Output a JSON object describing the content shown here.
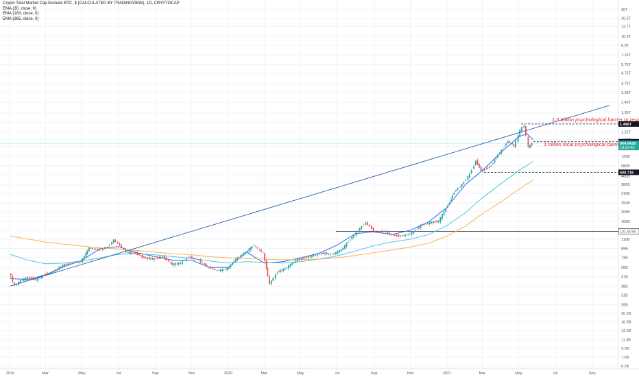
{
  "legend": {
    "title": "Crypto Total Market Cap Exclude BTC, $ (CALCULATED BY TRADINGVIEW), 1D, CRYPTOCAP",
    "ema_lines": [
      "EMA (30, close, 0)",
      "EMA (183, close, 0)",
      "EMA (365, close, 0)"
    ]
  },
  "colors": {
    "background": "#ffffff",
    "grid": "#f0f3fa",
    "up": "#26a69a",
    "down": "#ef5350",
    "ema30": "#2962ff",
    "ema183": "#4dc4e3",
    "ema365": "#f9b44b",
    "trendline": "#2a5caa",
    "annotation": "#e3242b",
    "tag_dark": "#131722",
    "tag_current": "#26a69a"
  },
  "chart_data": {
    "type": "candlestick",
    "title": "Crypto Total Market Cap Exclude BTC, $ (CALCULATED BY TRADINGVIEW), 1D, CRYPTOCAP",
    "scale": "log",
    "x_ticks": [
      "2019",
      "Mar",
      "May",
      "Jul",
      "Sep",
      "Nov",
      "2020",
      "Mar",
      "May",
      "Jul",
      "Sep",
      "Nov",
      "2021",
      "Mar",
      "May",
      "Jul",
      "Sep"
    ],
    "y_ticks": [
      "20T",
      "16.5T",
      "13.7T",
      "10.9T",
      "8.9T",
      "7.15T",
      "5.75T",
      "4.75T",
      "3.75T",
      "3.05T",
      "2.45T",
      "1.95T",
      "1.55T",
      "1.25T",
      "1.05T",
      "900B",
      "720B",
      "580B",
      "460B",
      "380B",
      "310B",
      "250B",
      "205B",
      "165B",
      "130B",
      "110B",
      "89B",
      "73B",
      "58B",
      "47B",
      "38B",
      "31B",
      "25B",
      "20.5B",
      "16.9B",
      "13.9B",
      "11.3B",
      "9.3B",
      "7.6B",
      "6.2B"
    ],
    "price_tags": [
      {
        "label": "1.496T",
        "value": 1496,
        "style": "dark"
      },
      {
        "label": "1.001T",
        "value": 1001,
        "style": "dark"
      },
      {
        "label": "964.643B",
        "sublabel": "18:23:45",
        "value": 964.643,
        "style": "current"
      },
      {
        "label": "500.718",
        "value": 500.718,
        "style": "dark"
      },
      {
        "label": "131.607B",
        "value": 131.607,
        "style": "plain"
      }
    ],
    "annotations": [
      {
        "text": "1.5 trillion psychological barrier or resistan",
        "level": 1496
      },
      {
        "text": "1 trillion local psychological barrier or",
        "level": 1001
      }
    ],
    "horizontal_levels": [
      1496,
      1001,
      500.718,
      131.607
    ],
    "trendline": {
      "start": {
        "date": "2019-01-01",
        "value": 38
      },
      "end": {
        "date": "2021-09-30",
        "value": 2280
      }
    },
    "series": [
      {
        "name": "EMA (30, close, 0)",
        "points": [
          [
            "2019-01-01",
            45
          ],
          [
            "2019-02-01",
            44
          ],
          [
            "2019-03-01",
            49
          ],
          [
            "2019-04-01",
            59
          ],
          [
            "2019-05-01",
            68
          ],
          [
            "2019-06-01",
            89
          ],
          [
            "2019-07-01",
            93
          ],
          [
            "2019-08-01",
            81
          ],
          [
            "2019-09-01",
            74
          ],
          [
            "2019-10-01",
            68
          ],
          [
            "2019-11-01",
            68
          ],
          [
            "2019-12-01",
            58
          ],
          [
            "2020-01-01",
            58
          ],
          [
            "2020-02-01",
            82
          ],
          [
            "2020-03-01",
            64
          ],
          [
            "2020-04-01",
            66
          ],
          [
            "2020-05-01",
            72
          ],
          [
            "2020-06-01",
            80
          ],
          [
            "2020-07-01",
            96
          ],
          [
            "2020-08-01",
            125
          ],
          [
            "2020-09-01",
            130
          ],
          [
            "2020-10-01",
            122
          ],
          [
            "2020-11-01",
            135
          ],
          [
            "2020-12-01",
            162
          ],
          [
            "2021-01-01",
            225
          ],
          [
            "2021-02-01",
            380
          ],
          [
            "2021-03-01",
            520
          ],
          [
            "2021-04-01",
            780
          ],
          [
            "2021-05-01",
            1120
          ],
          [
            "2021-05-15",
            1200
          ],
          [
            "2021-05-25",
            1050
          ]
        ]
      },
      {
        "name": "EMA (183, close, 0)",
        "points": [
          [
            "2019-01-01",
            78
          ],
          [
            "2019-02-01",
            68
          ],
          [
            "2019-03-01",
            63
          ],
          [
            "2019-04-01",
            64
          ],
          [
            "2019-05-01",
            67
          ],
          [
            "2019-06-01",
            72
          ],
          [
            "2019-07-01",
            78
          ],
          [
            "2019-08-01",
            79
          ],
          [
            "2019-09-01",
            77
          ],
          [
            "2019-10-01",
            74
          ],
          [
            "2019-11-01",
            71
          ],
          [
            "2019-12-01",
            67
          ],
          [
            "2020-01-01",
            64
          ],
          [
            "2020-02-01",
            66
          ],
          [
            "2020-03-01",
            65
          ],
          [
            "2020-04-01",
            64
          ],
          [
            "2020-05-01",
            66
          ],
          [
            "2020-06-01",
            70
          ],
          [
            "2020-07-01",
            75
          ],
          [
            "2020-08-01",
            84
          ],
          [
            "2020-09-01",
            95
          ],
          [
            "2020-10-01",
            103
          ],
          [
            "2020-11-01",
            110
          ],
          [
            "2020-12-01",
            122
          ],
          [
            "2021-01-01",
            150
          ],
          [
            "2021-02-01",
            200
          ],
          [
            "2021-03-01",
            280
          ],
          [
            "2021-04-01",
            385
          ],
          [
            "2021-05-01",
            520
          ],
          [
            "2021-05-25",
            640
          ]
        ]
      },
      {
        "name": "EMA (365, close, 0)",
        "points": [
          [
            "2019-01-01",
            118
          ],
          [
            "2019-02-01",
            110
          ],
          [
            "2019-03-01",
            103
          ],
          [
            "2019-04-01",
            98
          ],
          [
            "2019-05-01",
            94
          ],
          [
            "2019-06-01",
            90
          ],
          [
            "2019-07-01",
            88
          ],
          [
            "2019-08-01",
            85
          ],
          [
            "2019-09-01",
            82
          ],
          [
            "2019-10-01",
            79
          ],
          [
            "2019-11-01",
            77
          ],
          [
            "2019-12-01",
            74
          ],
          [
            "2020-01-01",
            72
          ],
          [
            "2020-02-01",
            71
          ],
          [
            "2020-03-01",
            70
          ],
          [
            "2020-04-01",
            69
          ],
          [
            "2020-05-01",
            69
          ],
          [
            "2020-06-01",
            70
          ],
          [
            "2020-07-01",
            72
          ],
          [
            "2020-08-01",
            76
          ],
          [
            "2020-09-01",
            81
          ],
          [
            "2020-10-01",
            86
          ],
          [
            "2020-11-01",
            92
          ],
          [
            "2020-12-01",
            100
          ],
          [
            "2021-01-01",
            118
          ],
          [
            "2021-02-01",
            148
          ],
          [
            "2021-03-01",
            195
          ],
          [
            "2021-04-01",
            255
          ],
          [
            "2021-05-01",
            340
          ],
          [
            "2021-05-25",
            420
          ]
        ]
      },
      {
        "name": "",
        "kind": "price",
        "points": [
          [
            "2019-01-01",
            52
          ],
          [
            "2019-01-10",
            38
          ],
          [
            "2019-01-20",
            43
          ],
          [
            "2019-02-01",
            46
          ],
          [
            "2019-02-15",
            44
          ],
          [
            "2019-03-01",
            49
          ],
          [
            "2019-03-15",
            52
          ],
          [
            "2019-04-01",
            61
          ],
          [
            "2019-04-15",
            64
          ],
          [
            "2019-05-01",
            66
          ],
          [
            "2019-05-15",
            90
          ],
          [
            "2019-06-01",
            86
          ],
          [
            "2019-06-15",
            92
          ],
          [
            "2019-06-25",
            108
          ],
          [
            "2019-07-05",
            96
          ],
          [
            "2019-07-15",
            82
          ],
          [
            "2019-08-01",
            80
          ],
          [
            "2019-08-15",
            72
          ],
          [
            "2019-09-01",
            70
          ],
          [
            "2019-09-15",
            74
          ],
          [
            "2019-10-01",
            62
          ],
          [
            "2019-10-15",
            64
          ],
          [
            "2019-10-28",
            74
          ],
          [
            "2019-11-15",
            68
          ],
          [
            "2019-12-01",
            58
          ],
          [
            "2019-12-15",
            54
          ],
          [
            "2020-01-01",
            56
          ],
          [
            "2020-01-15",
            70
          ],
          [
            "2020-02-01",
            82
          ],
          [
            "2020-02-15",
            96
          ],
          [
            "2020-03-01",
            80
          ],
          [
            "2020-03-12",
            40
          ],
          [
            "2020-03-25",
            52
          ],
          [
            "2020-04-10",
            58
          ],
          [
            "2020-04-25",
            68
          ],
          [
            "2020-05-10",
            72
          ],
          [
            "2020-05-25",
            76
          ],
          [
            "2020-06-10",
            80
          ],
          [
            "2020-06-25",
            78
          ],
          [
            "2020-07-10",
            86
          ],
          [
            "2020-07-25",
            110
          ],
          [
            "2020-08-10",
            140
          ],
          [
            "2020-08-20",
            160
          ],
          [
            "2020-09-05",
            128
          ],
          [
            "2020-09-20",
            132
          ],
          [
            "2020-10-05",
            120
          ],
          [
            "2020-10-20",
            118
          ],
          [
            "2020-11-05",
            126
          ],
          [
            "2020-11-20",
            150
          ],
          [
            "2020-12-05",
            160
          ],
          [
            "2020-12-20",
            165
          ],
          [
            "2021-01-01",
            220
          ],
          [
            "2021-01-15",
            320
          ],
          [
            "2021-01-28",
            380
          ],
          [
            "2021-02-10",
            480
          ],
          [
            "2021-02-20",
            650
          ],
          [
            "2021-03-01",
            520
          ],
          [
            "2021-03-15",
            560
          ],
          [
            "2021-04-01",
            780
          ],
          [
            "2021-04-15",
            1020
          ],
          [
            "2021-04-25",
            900
          ],
          [
            "2021-05-05",
            1300
          ],
          [
            "2021-05-12",
            1450
          ],
          [
            "2021-05-19",
            880
          ],
          [
            "2021-05-25",
            964.643
          ]
        ]
      }
    ]
  }
}
